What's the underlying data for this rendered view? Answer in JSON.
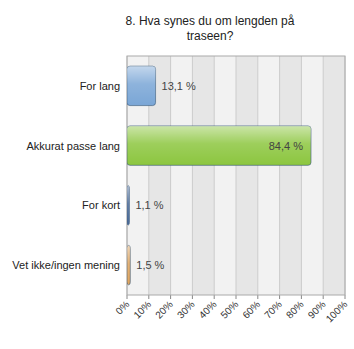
{
  "chart_data": {
    "type": "bar",
    "title": "8. Hva synes du om lengden på traseen?",
    "orientation": "horizontal",
    "categories": [
      "For lang",
      "Akkurat passe lang",
      "For kort",
      "Vet ikke/ingen mening"
    ],
    "values": [
      13.1,
      84.4,
      1.1,
      1.5
    ],
    "value_labels": [
      "13,1 %",
      "84,4 %",
      "1,1 %",
      "1,5 %"
    ],
    "colors": [
      "#7aa6d6",
      "#8cc63f",
      "#4a6a9a",
      "#e0a45c"
    ],
    "data_labels": true,
    "grid": true,
    "xlim": [
      0,
      100
    ],
    "xticks": [
      {
        "value": 0,
        "label": "0%"
      },
      {
        "value": 10,
        "label": "10%"
      },
      {
        "value": 20,
        "label": "20%"
      },
      {
        "value": 30,
        "label": "30%"
      },
      {
        "value": 40,
        "label": "40%"
      },
      {
        "value": 50,
        "label": "50%"
      },
      {
        "value": 60,
        "label": "60%"
      },
      {
        "value": 70,
        "label": "70%"
      },
      {
        "value": 80,
        "label": "80%"
      },
      {
        "value": 90,
        "label": "90%"
      },
      {
        "value": 100,
        "label": "100%"
      }
    ]
  }
}
